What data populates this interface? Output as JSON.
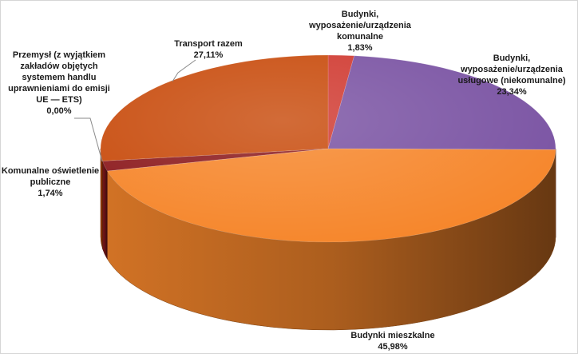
{
  "chart_data": {
    "type": "pie",
    "style": "3d",
    "slices": [
      {
        "label_lines": [
          "Budynki,",
          "wyposażenie/urządzenia",
          "komunalne"
        ],
        "value_label": "1,83%",
        "value": 1.83,
        "color": "#d03a31"
      },
      {
        "label_lines": [
          "Budynki,",
          "wyposażenie/urządzenia",
          "usługowe (niekomunalne)"
        ],
        "value_label": "23,34%",
        "value": 23.34,
        "color": "#7a53a3"
      },
      {
        "label_lines": [
          "Budynki mieszkalne"
        ],
        "value_label": "45,98%",
        "value": 45.98,
        "color": "#f6862b"
      },
      {
        "label_lines": [
          "Komunalne oświetlenie",
          "publiczne"
        ],
        "value_label": "1,74%",
        "value": 1.74,
        "color": "#8c1a1d"
      },
      {
        "label_lines": [
          "Przemysł (z wyjątkiem",
          "zakładów objętych",
          "systemem handlu",
          "uprawnieniami do emisji",
          "UE — ETS)"
        ],
        "value_label": "0,00%",
        "value": 0.0,
        "color": "#b8461c"
      },
      {
        "label_lines": [
          "Transport razem"
        ],
        "value_label": "27,11%",
        "value": 27.11,
        "color": "#c84b0c"
      }
    ]
  }
}
